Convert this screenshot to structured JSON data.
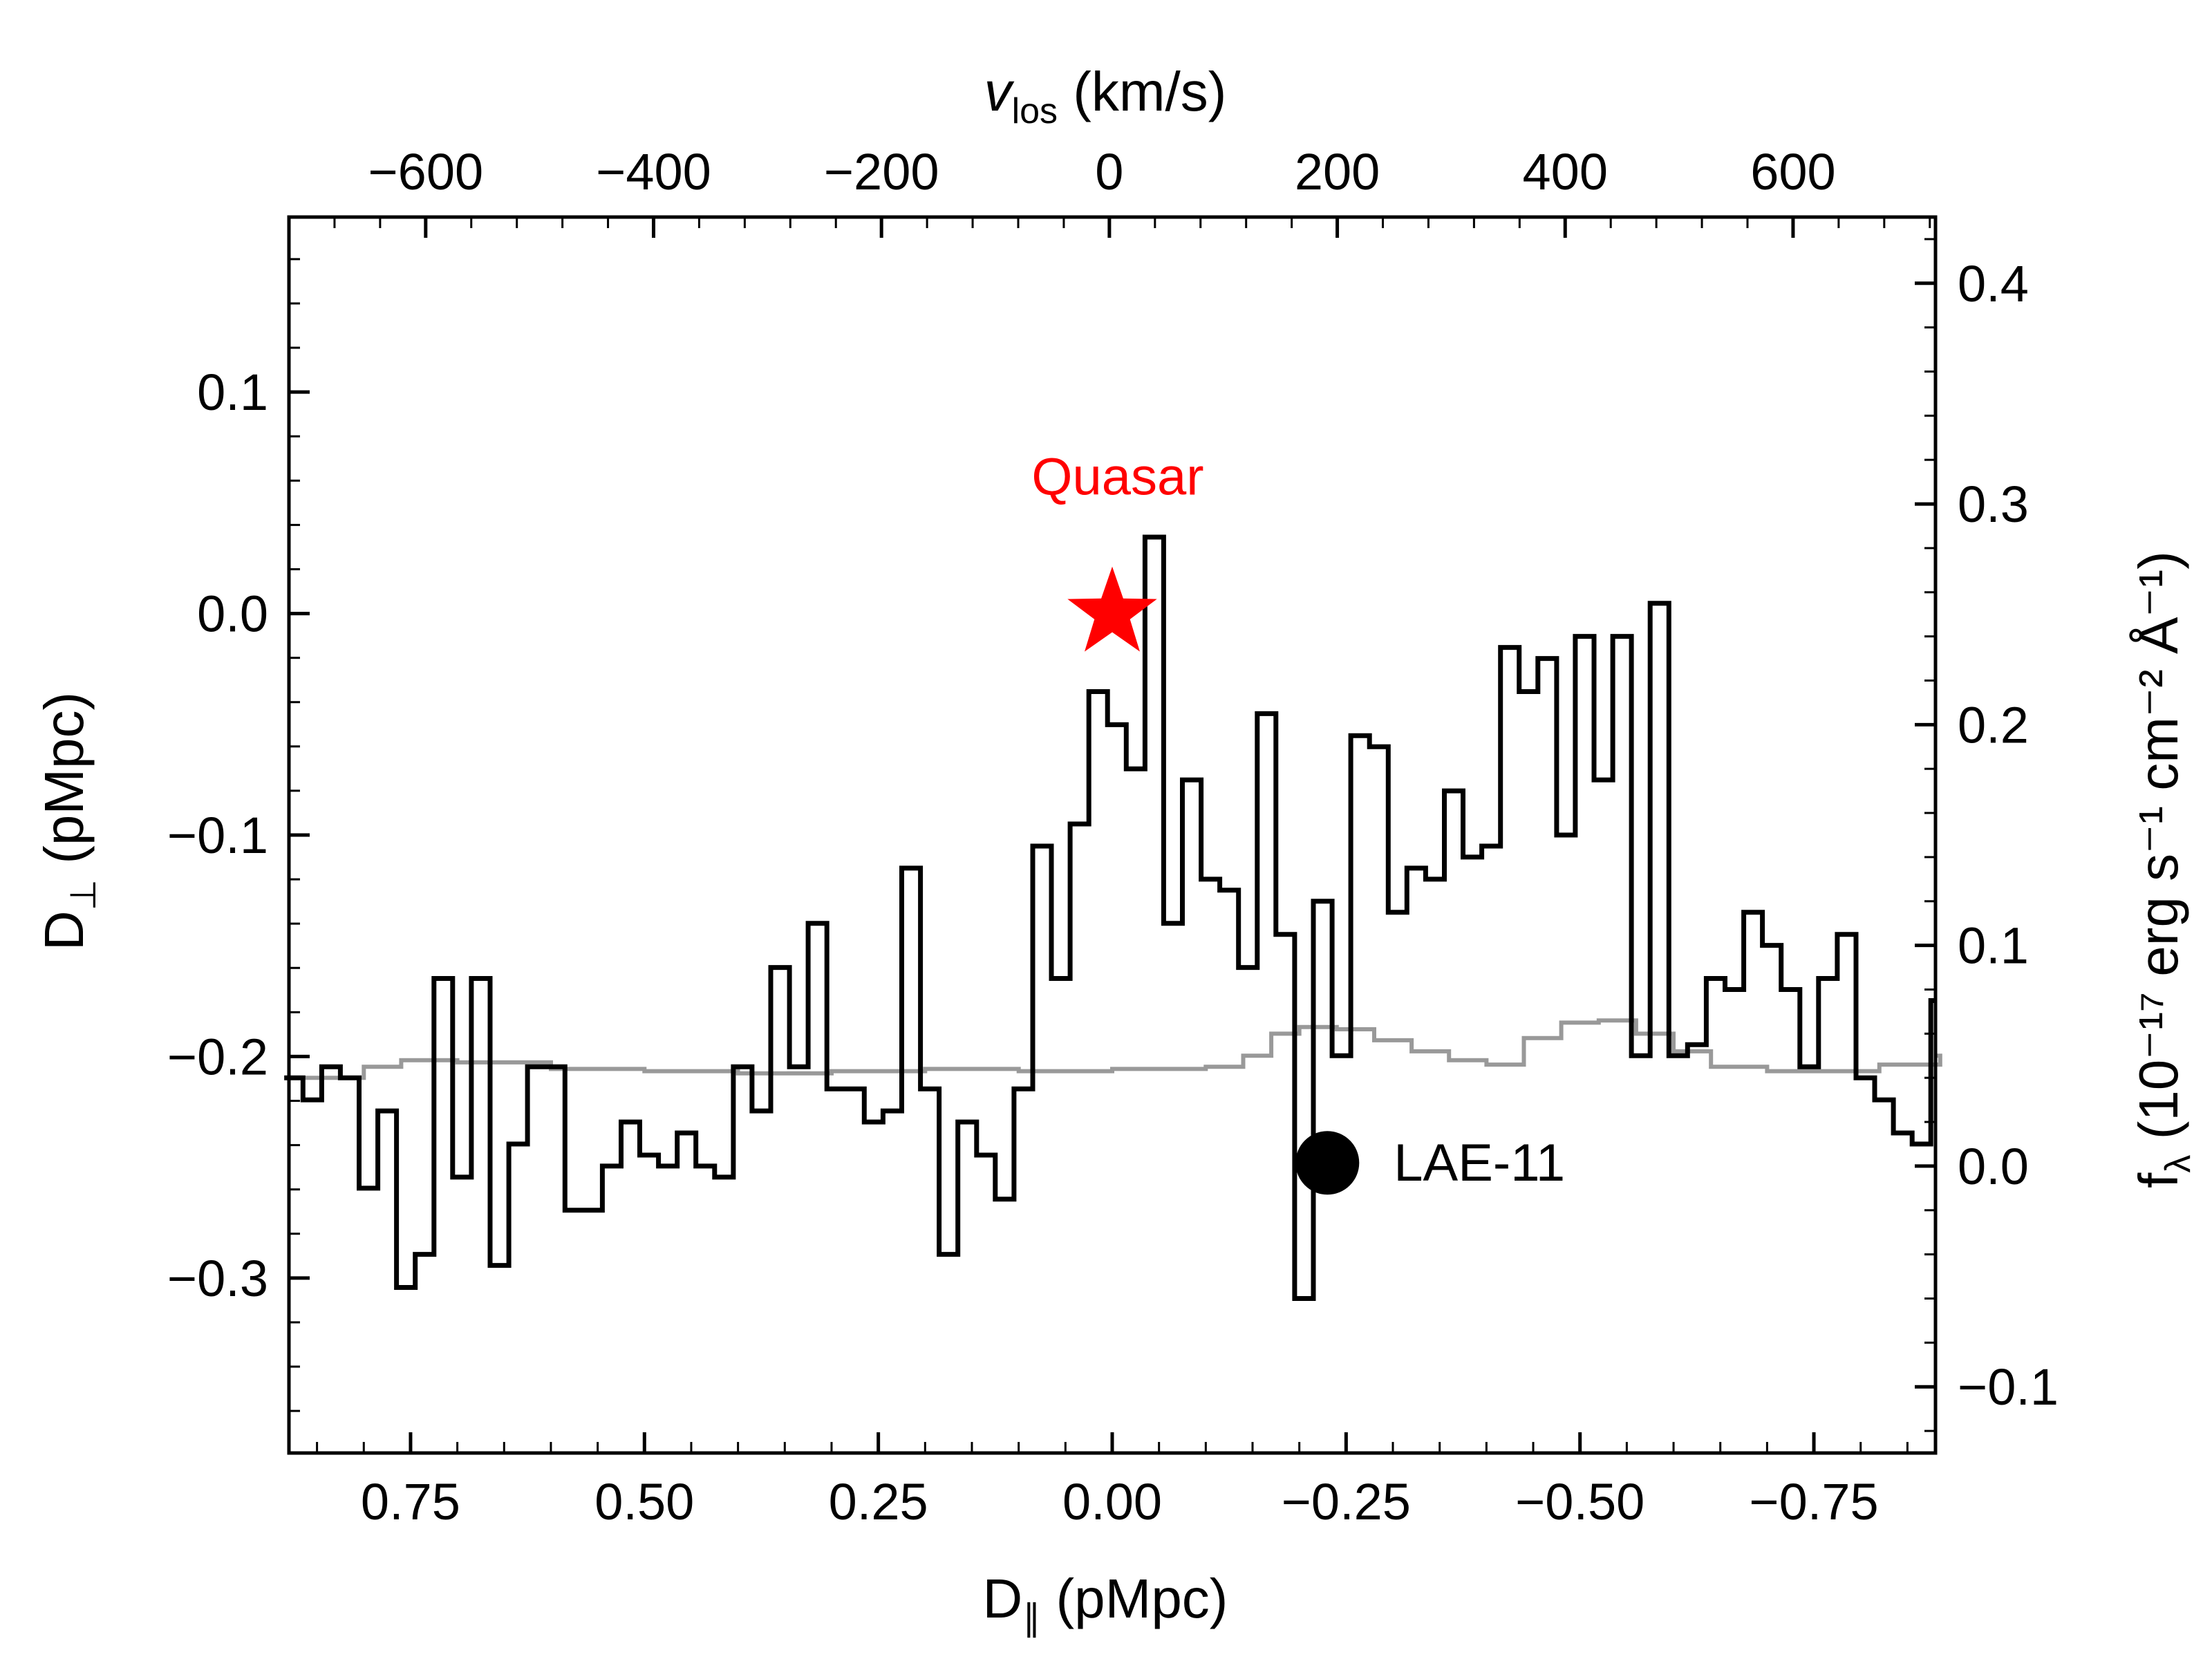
{
  "chart_data": {
    "type": "line",
    "axes": {
      "bottom": {
        "label": "D",
        "label_sub": "∥",
        "label_rest": " (pMpc)",
        "lim": [
          0.88,
          -0.88
        ],
        "ticks": [
          "0.75",
          "0.50",
          "0.25",
          "0.00",
          "−0.25",
          "−0.50",
          "−0.75"
        ],
        "tick_values": [
          0.75,
          0.5,
          0.25,
          0.0,
          -0.25,
          -0.5,
          -0.75
        ]
      },
      "top": {
        "label": "v",
        "label_sub": "los",
        "label_rest": " (km/s)",
        "lim": [
          -720,
          725
        ],
        "ticks": [
          "−600",
          "−400",
          "−200",
          "0",
          "200",
          "400",
          "600"
        ],
        "tick_values": [
          -600,
          -400,
          -200,
          0,
          200,
          400,
          600
        ]
      },
      "left": {
        "label": "D",
        "label_sub": "⊥",
        "label_rest": " (pMpc)",
        "lim": [
          -0.379,
          0.179
        ],
        "ticks": [
          "0.1",
          "0.0",
          "−0.1",
          "−0.2",
          "−0.3"
        ],
        "tick_values": [
          0.1,
          0.0,
          -0.1,
          -0.2,
          -0.3
        ]
      },
      "right": {
        "label": "f",
        "label_sub": "λ",
        "label_rest": " (10⁻¹⁷ erg s⁻¹ cm⁻² Å⁻¹)",
        "lim": [
          -0.13,
          0.43
        ],
        "ticks": [
          "0.4",
          "0.3",
          "0.2",
          "0.1",
          "0.0",
          "−0.1"
        ],
        "tick_values": [
          0.4,
          0.3,
          0.2,
          0.1,
          0.0,
          -0.1
        ]
      }
    },
    "series": [
      {
        "style": "steps",
        "color": "#000000",
        "axis": "right",
        "x_bottom": [
          0.885,
          0.865,
          0.845,
          0.825,
          0.805,
          0.785,
          0.765,
          0.745,
          0.725,
          0.705,
          0.685,
          0.665,
          0.645,
          0.625,
          0.605,
          0.585,
          0.565,
          0.545,
          0.525,
          0.505,
          0.485,
          0.465,
          0.445,
          0.425,
          0.405,
          0.385,
          0.365,
          0.345,
          0.325,
          0.305,
          0.285,
          0.265,
          0.245,
          0.225,
          0.205,
          0.185,
          0.165,
          0.145,
          0.125,
          0.105,
          0.085,
          0.065,
          0.045,
          0.025,
          0.005,
          -0.015,
          -0.035,
          -0.055,
          -0.075,
          -0.095,
          -0.115,
          -0.135,
          -0.155,
          -0.175,
          -0.195,
          -0.215,
          -0.235,
          -0.255,
          -0.275,
          -0.295,
          -0.315,
          -0.335,
          -0.355,
          -0.375,
          -0.395,
          -0.415,
          -0.435,
          -0.455,
          -0.475,
          -0.495,
          -0.515,
          -0.535,
          -0.555,
          -0.575,
          -0.595,
          -0.615,
          -0.635,
          -0.655,
          -0.675,
          -0.695,
          -0.715,
          -0.735,
          -0.755,
          -0.775,
          -0.795,
          -0.815,
          -0.835,
          -0.855,
          -0.875
        ],
        "y": [
          0.04,
          0.03,
          0.045,
          0.04,
          -0.01,
          0.025,
          -0.055,
          -0.04,
          0.085,
          -0.005,
          0.085,
          -0.045,
          0.01,
          0.045,
          0.045,
          -0.02,
          -0.02,
          0,
          0.02,
          0.005,
          0,
          0.015,
          0,
          -0.005,
          0.045,
          0.025,
          0.09,
          0.045,
          0.11,
          0.035,
          0.035,
          0.02,
          0.025,
          0.135,
          0.035,
          -0.04,
          0.02,
          0.005,
          -0.015,
          0.035,
          0.145,
          0.085,
          0.155,
          0.215,
          0.2,
          0.18,
          0.285,
          0.11,
          0.175,
          0.13,
          0.125,
          0.09,
          0.205,
          0.105,
          -0.06,
          0.12,
          0.05,
          0.195,
          0.19,
          0.115,
          0.135,
          0.13,
          0.17,
          0.14,
          0.145,
          0.235,
          0.215,
          0.23,
          0.15,
          0.24,
          0.175,
          0.24,
          0.05,
          0.255,
          0.05,
          0.055,
          0.085,
          0.08,
          0.115,
          0.1,
          0.08,
          0.045,
          0.085,
          0.105,
          0.04,
          0.03,
          0.015,
          0.01,
          0.075,
          0.1,
          0.09,
          0.12,
          0.08
        ],
        "comment": "step heights in right-axis units (10^-17 erg s^-1 cm^-2 Å^-1); x are bin edges in D∥ (pMpc)"
      },
      {
        "style": "steps",
        "color": "#999999",
        "axis": "right",
        "x_bottom": [
          0.885,
          0.84,
          0.8,
          0.76,
          0.7,
          0.6,
          0.5,
          0.4,
          0.3,
          0.2,
          0.1,
          0.0,
          -0.1,
          -0.14,
          -0.17,
          -0.2,
          -0.24,
          -0.28,
          -0.32,
          -0.36,
          -0.4,
          -0.44,
          -0.48,
          -0.52,
          -0.56,
          -0.6,
          -0.64,
          -0.7,
          -0.76,
          -0.82,
          -0.885
        ],
        "y": [
          0.04,
          0.04,
          0.045,
          0.048,
          0.047,
          0.044,
          0.043,
          0.042,
          0.043,
          0.044,
          0.043,
          0.044,
          0.045,
          0.05,
          0.06,
          0.063,
          0.062,
          0.057,
          0.052,
          0.048,
          0.046,
          0.058,
          0.065,
          0.066,
          0.06,
          0.052,
          0.045,
          0.043,
          0.043,
          0.046,
          0.05
        ],
        "comment": "noise spectrum"
      }
    ],
    "points": [
      {
        "name": "Quasar",
        "x": 0.0,
        "y": 0.0,
        "marker": "star",
        "color": "#ff0000",
        "label": "Quasar"
      },
      {
        "name": "LAE-11",
        "x": -0.23,
        "y": -0.248,
        "marker": "circle",
        "color": "#000000",
        "label": "LAE-11"
      }
    ]
  }
}
